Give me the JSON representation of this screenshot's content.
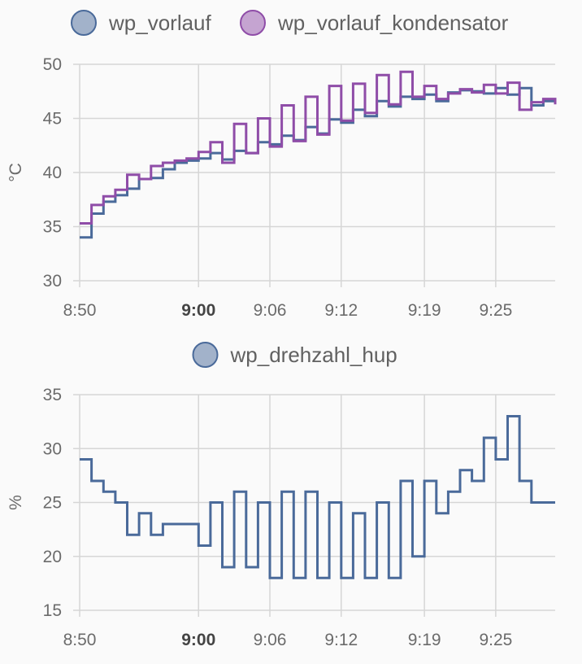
{
  "colors": {
    "wp_vorlauf": "#4a6a9a",
    "wp_vorlauf_kondensator": "#8f4da8",
    "wp_drehzahl_hup": "#4a6a9a",
    "grid": "#d6d6d6",
    "background": "#fafafa"
  },
  "chart_data": [
    {
      "type": "line",
      "step": true,
      "ylabel": "°C",
      "ylim": [
        30,
        50
      ],
      "yticks": [
        "30",
        "35",
        "40",
        "45",
        "50"
      ],
      "xlim": [
        "8:50",
        "9:30"
      ],
      "xticks": [
        {
          "label": "8:50",
          "bold": false
        },
        {
          "label": "9:00",
          "bold": true
        },
        {
          "label": "9:06",
          "bold": false
        },
        {
          "label": "9:12",
          "bold": false
        },
        {
          "label": "9:19",
          "bold": false
        },
        {
          "label": "9:25",
          "bold": false
        }
      ],
      "legend_position": "top",
      "grid": true,
      "series": [
        {
          "name": "wp_vorlauf",
          "color": "#4a6a9a",
          "x": [
            "8:50",
            "8:51",
            "8:52",
            "8:53",
            "8:54",
            "8:55",
            "8:56",
            "8:57",
            "8:58",
            "8:59",
            "9:00",
            "9:01",
            "9:02",
            "9:03",
            "9:04",
            "9:05",
            "9:06",
            "9:07",
            "9:08",
            "9:09",
            "9:10",
            "9:11",
            "9:12",
            "9:13",
            "9:14",
            "9:15",
            "9:16",
            "9:17",
            "9:18",
            "9:19",
            "9:20",
            "9:21",
            "9:22",
            "9:23",
            "9:24",
            "9:25",
            "9:26",
            "9:27",
            "9:28",
            "9:29",
            "9:30"
          ],
          "y": [
            34.0,
            36.2,
            37.3,
            37.9,
            38.5,
            39.4,
            39.5,
            40.3,
            40.9,
            41.1,
            41.3,
            41.8,
            41.2,
            42.0,
            41.8,
            42.8,
            42.6,
            43.4,
            43.0,
            44.2,
            43.6,
            44.9,
            44.6,
            45.8,
            45.2,
            46.6,
            46.1,
            47.0,
            46.8,
            47.2,
            46.6,
            47.4,
            47.6,
            47.5,
            47.3,
            47.8,
            47.2,
            47.8,
            46.2,
            46.6,
            46.4
          ]
        },
        {
          "name": "wp_vorlauf_kondensator",
          "color": "#8f4da8",
          "x": [
            "8:50",
            "8:51",
            "8:52",
            "8:53",
            "8:54",
            "8:55",
            "8:56",
            "8:57",
            "8:58",
            "8:59",
            "9:00",
            "9:01",
            "9:02",
            "9:03",
            "9:04",
            "9:05",
            "9:06",
            "9:07",
            "9:08",
            "9:09",
            "9:10",
            "9:11",
            "9:12",
            "9:13",
            "9:14",
            "9:15",
            "9:16",
            "9:17",
            "9:18",
            "9:19",
            "9:20",
            "9:21",
            "9:22",
            "9:23",
            "9:24",
            "9:25",
            "9:26",
            "9:27",
            "9:28",
            "9:29",
            "9:30"
          ],
          "y": [
            35.3,
            37.0,
            37.8,
            38.4,
            39.8,
            39.4,
            40.6,
            40.9,
            41.1,
            41.3,
            41.9,
            42.8,
            40.9,
            44.5,
            41.8,
            45.0,
            42.4,
            46.2,
            42.9,
            47.0,
            43.5,
            48.0,
            44.8,
            48.2,
            45.5,
            49.0,
            46.3,
            49.3,
            47.0,
            48.0,
            46.8,
            47.3,
            47.7,
            47.4,
            48.1,
            47.3,
            48.3,
            45.8,
            46.5,
            46.8,
            46.3
          ]
        }
      ]
    },
    {
      "type": "line",
      "step": true,
      "ylabel": "%",
      "ylim": [
        15,
        35
      ],
      "yticks": [
        "15",
        "20",
        "25",
        "30",
        "35"
      ],
      "xlim": [
        "8:50",
        "9:30"
      ],
      "xticks": [
        {
          "label": "8:50",
          "bold": false
        },
        {
          "label": "9:00",
          "bold": true
        },
        {
          "label": "9:06",
          "bold": false
        },
        {
          "label": "9:12",
          "bold": false
        },
        {
          "label": "9:19",
          "bold": false
        },
        {
          "label": "9:25",
          "bold": false
        }
      ],
      "legend_position": "top",
      "grid": true,
      "series": [
        {
          "name": "wp_drehzahl_hup",
          "color": "#4a6a9a",
          "x": [
            "8:50",
            "8:51",
            "8:52",
            "8:53",
            "8:54",
            "8:55",
            "8:56",
            "8:57",
            "8:58",
            "8:59",
            "9:00",
            "9:01",
            "9:02",
            "9:03",
            "9:04",
            "9:05",
            "9:06",
            "9:07",
            "9:08",
            "9:09",
            "9:10",
            "9:11",
            "9:12",
            "9:13",
            "9:14",
            "9:15",
            "9:16",
            "9:17",
            "9:18",
            "9:19",
            "9:20",
            "9:21",
            "9:22",
            "9:23",
            "9:24",
            "9:25",
            "9:26",
            "9:27",
            "9:28",
            "9:29",
            "9:30"
          ],
          "y": [
            29,
            27,
            26,
            25,
            22,
            24,
            22,
            23,
            23,
            23,
            21,
            25,
            19,
            26,
            19,
            25,
            18,
            26,
            18,
            26,
            18,
            25,
            18,
            24,
            18,
            25,
            18,
            27,
            20,
            27,
            24,
            26,
            28,
            27,
            31,
            29,
            33,
            27,
            25,
            25,
            25
          ]
        }
      ]
    }
  ]
}
